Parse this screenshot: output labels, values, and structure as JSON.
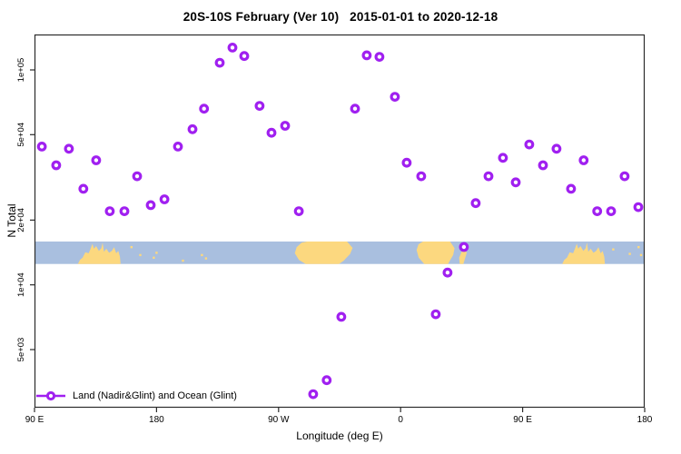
{
  "chart_data": {
    "type": "scatter",
    "title": "20S-10S February (Ver 10)   2015-01-01 to 2020-12-18",
    "xlabel": "Longitude (deg E)",
    "ylabel": "N Total",
    "grid": false,
    "x_axis": {
      "note": "longitude displayed wrapping eastward: 90E, 180, 90W, 0, 90E, 180 (internal units 90..540)",
      "range": [
        90,
        540
      ],
      "ticks": [
        90,
        180,
        270,
        360,
        450,
        540
      ],
      "tick_labels": [
        "90 E",
        "180",
        "90 W",
        "0",
        "90 E",
        "180"
      ]
    },
    "y_axis": {
      "scale": "log10",
      "range": [
        2700,
        146000
      ],
      "ticks": [
        100000,
        50000,
        20000,
        10000,
        5000
      ],
      "tick_labels": [
        "1e+05",
        "5e+04",
        "2e+04",
        "1e+04",
        "5e+03"
      ]
    },
    "legend": {
      "position": "bottom-left",
      "label": "Land (Nadir&Glint) and Ocean (Glint)"
    },
    "marker": {
      "shape": "open-circle",
      "color": "#a020f0",
      "fill": "#ffffff"
    },
    "colors": {
      "axis": "#2b2b2b",
      "text": "#000000"
    },
    "points": [
      [
        95.4,
        44000
      ],
      [
        106,
        36000
      ],
      [
        115.4,
        43000
      ],
      [
        126,
        28000
      ],
      [
        135.5,
        38000
      ],
      [
        145.5,
        22000
      ],
      [
        156.3,
        22000
      ],
      [
        165.7,
        32000
      ],
      [
        175.7,
        23500
      ],
      [
        185.8,
        25000
      ],
      [
        195.8,
        44000
      ],
      [
        206.5,
        53000
      ],
      [
        215,
        66000
      ],
      [
        226.6,
        108000
      ],
      [
        236,
        127000
      ],
      [
        244.7,
        116000
      ],
      [
        256,
        68000
      ],
      [
        264.8,
        51000
      ],
      [
        274.8,
        55000
      ],
      [
        284.9,
        22000
      ],
      [
        295.5,
        3100
      ],
      [
        305.5,
        3600
      ],
      [
        316.3,
        7100
      ],
      [
        326.4,
        66000
      ],
      [
        335,
        117000
      ],
      [
        344.4,
        115000
      ],
      [
        355.8,
        75000
      ],
      [
        364.5,
        37000
      ],
      [
        375.2,
        32000
      ],
      [
        385.9,
        7300
      ],
      [
        394.6,
        11400
      ],
      [
        406.7,
        15000
      ],
      [
        415.4,
        24000
      ],
      [
        424.8,
        32000
      ],
      [
        435.5,
        39000
      ],
      [
        444.9,
        30000
      ],
      [
        454.9,
        45000
      ],
      [
        465,
        36000
      ],
      [
        475,
        43000
      ],
      [
        485.7,
        28000
      ],
      [
        495,
        38000
      ],
      [
        505,
        22000
      ],
      [
        515.2,
        22000
      ],
      [
        525.2,
        32000
      ],
      [
        535.3,
        23000
      ]
    ],
    "map_band": {
      "description": "world-map strip (20S-10S latitude band) drawn across plot",
      "value_top": 15900,
      "value_bottom": 12500,
      "ocean_color": "#a9bfdf",
      "land_color": "#fcd87f",
      "land_masses": [
        {
          "name": "australia",
          "shift": 0,
          "outline": [
            [
              122,
              1
            ],
            [
              123.5,
              0.82
            ],
            [
              125.5,
              0.72
            ],
            [
              127.5,
              0.48
            ],
            [
              130,
              0.52
            ],
            [
              131.5,
              0.3
            ],
            [
              132.7,
              0.1
            ],
            [
              133.8,
              0.32
            ],
            [
              135.5,
              0.2
            ],
            [
              137.5,
              0.42
            ],
            [
              139.3,
              0.3
            ],
            [
              140.2,
              0.05
            ],
            [
              141.2,
              0.45
            ],
            [
              143,
              0.32
            ],
            [
              145,
              0.5
            ],
            [
              147,
              0.42
            ],
            [
              148.7,
              0.25
            ],
            [
              150.3,
              0.52
            ],
            [
              151.8,
              0.42
            ],
            [
              153,
              0.68
            ],
            [
              153.5,
              1
            ]
          ]
        },
        {
          "name": "south-america",
          "shift": 0,
          "outline": [
            [
              290,
              1
            ],
            [
              285,
              0.82
            ],
            [
              282,
              0.52
            ],
            [
              283.3,
              0.25
            ],
            [
              287,
              0.05
            ],
            [
              291,
              0
            ],
            [
              320.5,
              0
            ],
            [
              324.6,
              0.28
            ],
            [
              322.8,
              0.55
            ],
            [
              318,
              0.85
            ],
            [
              314.5,
              1
            ]
          ]
        },
        {
          "name": "africa",
          "shift": 0,
          "outline": [
            [
              377.5,
              1
            ],
            [
              373.3,
              0.72
            ],
            [
              371.8,
              0.38
            ],
            [
              373.2,
              0.12
            ],
            [
              376.5,
              0
            ],
            [
              396.5,
              0
            ],
            [
              399.8,
              0.3
            ],
            [
              398.8,
              0.6
            ],
            [
              396.3,
              0.85
            ],
            [
              395,
              1
            ]
          ]
        },
        {
          "name": "madagascar",
          "shift": 0,
          "outline": [
            [
              403.6,
              1
            ],
            [
              403.2,
              0.72
            ],
            [
              405.3,
              0.42
            ],
            [
              407.6,
              0.28
            ],
            [
              408.7,
              0.52
            ],
            [
              406.3,
              1
            ]
          ]
        },
        {
          "name": "australia-repeat",
          "shift": 357.2,
          "outline": [
            [
              122,
              1
            ],
            [
              123.5,
              0.82
            ],
            [
              125.5,
              0.72
            ],
            [
              127.5,
              0.48
            ],
            [
              130,
              0.52
            ],
            [
              131.5,
              0.3
            ],
            [
              132.7,
              0.1
            ],
            [
              133.8,
              0.32
            ],
            [
              135.5,
              0.2
            ],
            [
              137.5,
              0.42
            ],
            [
              139.3,
              0.3
            ],
            [
              140.2,
              0.05
            ],
            [
              141.2,
              0.45
            ],
            [
              143,
              0.32
            ],
            [
              145,
              0.5
            ],
            [
              147,
              0.42
            ],
            [
              148.7,
              0.25
            ],
            [
              150.3,
              0.52
            ],
            [
              151.8,
              0.42
            ],
            [
              153,
              0.68
            ],
            [
              153.5,
              1
            ]
          ]
        }
      ],
      "islands": [
        [
          161.5,
          0.25
        ],
        [
          168,
          0.6
        ],
        [
          178,
          0.72
        ],
        [
          180,
          0.5
        ],
        [
          199.5,
          0.85
        ],
        [
          213.5,
          0.6
        ],
        [
          216.5,
          0.75
        ],
        [
          516.8,
          0.35
        ],
        [
          529,
          0.55
        ],
        [
          535.5,
          0.25
        ],
        [
          537.3,
          0.6
        ]
      ]
    }
  }
}
